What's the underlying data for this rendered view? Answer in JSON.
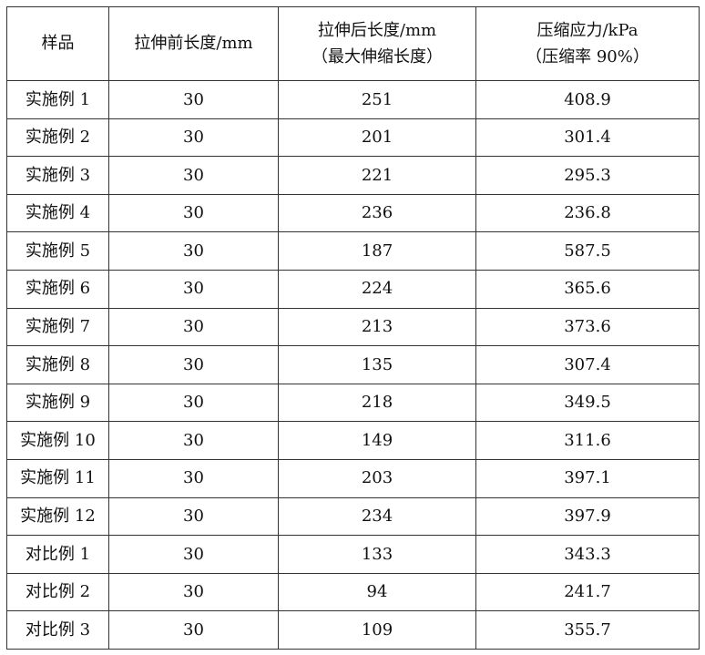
{
  "table": {
    "headers": [
      {
        "line1": "样品",
        "line2": ""
      },
      {
        "line1": "拉伸前长度/mm",
        "line2": ""
      },
      {
        "line1": "拉伸后长度/mm",
        "line2": "（最大伸缩长度）"
      },
      {
        "line1": "压缩应力/kPa",
        "line2": "（压缩率 90%）"
      }
    ],
    "rows": [
      {
        "sample": "实施例 1",
        "before": "30",
        "after": "251",
        "stress": "408.9"
      },
      {
        "sample": "实施例 2",
        "before": "30",
        "after": "201",
        "stress": "301.4"
      },
      {
        "sample": "实施例 3",
        "before": "30",
        "after": "221",
        "stress": "295.3"
      },
      {
        "sample": "实施例 4",
        "before": "30",
        "after": "236",
        "stress": "236.8"
      },
      {
        "sample": "实施例 5",
        "before": "30",
        "after": "187",
        "stress": "587.5"
      },
      {
        "sample": "实施例 6",
        "before": "30",
        "after": "224",
        "stress": "365.6"
      },
      {
        "sample": "实施例 7",
        "before": "30",
        "after": "213",
        "stress": "373.6"
      },
      {
        "sample": "实施例 8",
        "before": "30",
        "after": "135",
        "stress": "307.4"
      },
      {
        "sample": "实施例 9",
        "before": "30",
        "after": "218",
        "stress": "349.5"
      },
      {
        "sample": "实施例 10",
        "before": "30",
        "after": "149",
        "stress": "311.6"
      },
      {
        "sample": "实施例 11",
        "before": "30",
        "after": "203",
        "stress": "397.1"
      },
      {
        "sample": "实施例 12",
        "before": "30",
        "after": "234",
        "stress": "397.9"
      },
      {
        "sample": "对比例 1",
        "before": "30",
        "after": "133",
        "stress": "343.3"
      },
      {
        "sample": "对比例 2",
        "before": "30",
        "after": "94",
        "stress": "241.7"
      },
      {
        "sample": "对比例 3",
        "before": "30",
        "after": "109",
        "stress": "355.7"
      }
    ]
  }
}
